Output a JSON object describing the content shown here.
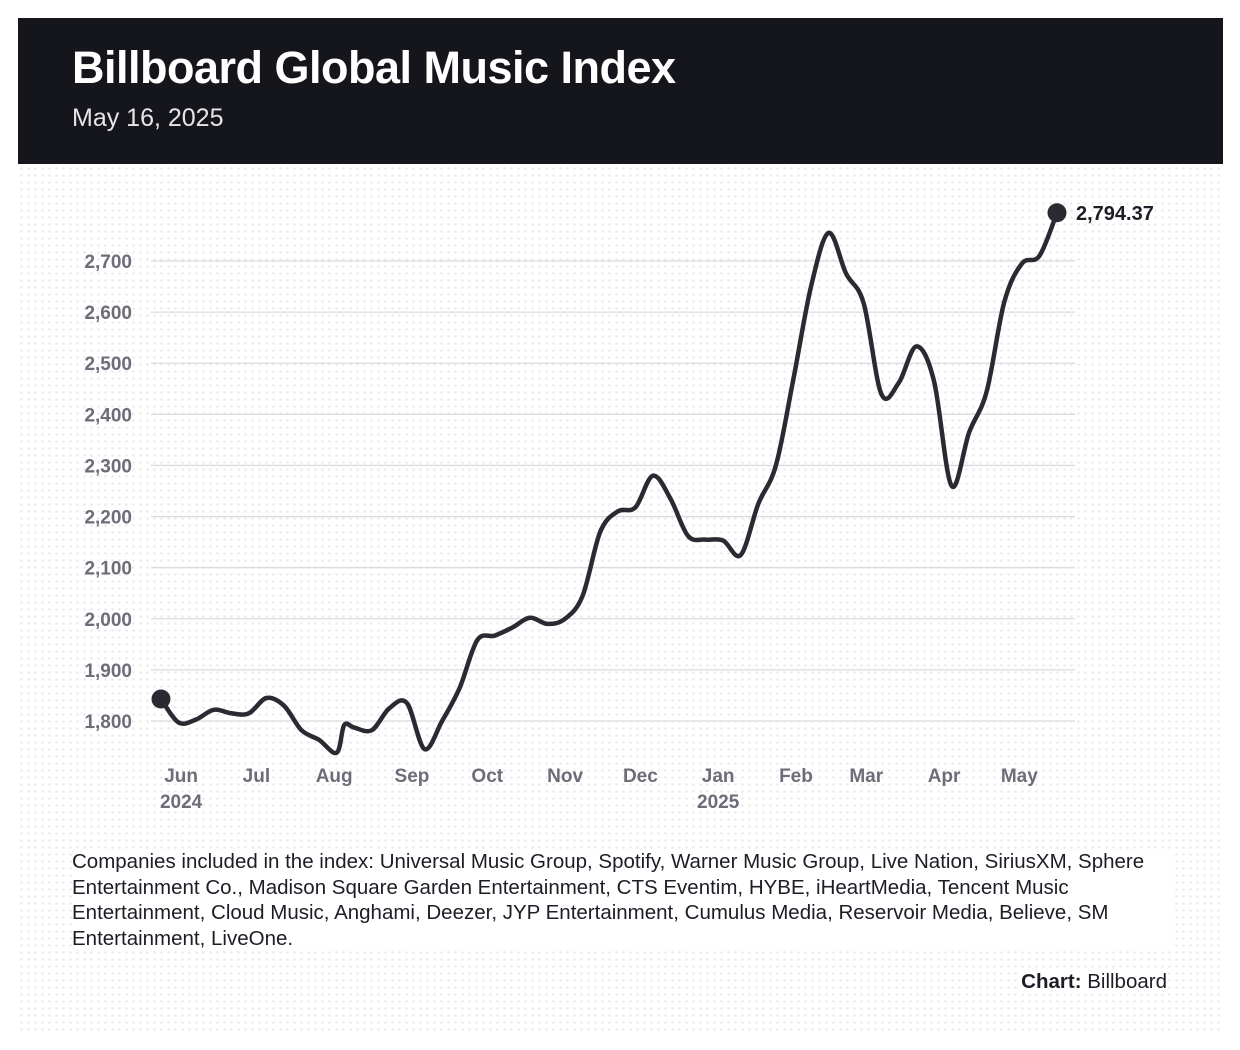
{
  "header": {
    "title": "Billboard Global Music Index",
    "date": "May 16, 2025"
  },
  "colors": {
    "header_bg": "#15151c",
    "line": "#2a2a33",
    "tick_text": "#6d6d79",
    "gridline": "#dcdce0"
  },
  "chart_data": {
    "type": "line",
    "title": "Billboard Global Music Index",
    "subtitle": "May 16, 2025",
    "xlabel": "",
    "ylabel": "",
    "ylim": [
      1730,
      2810
    ],
    "y_ticks": [
      1800,
      1900,
      2000,
      2100,
      2200,
      2300,
      2400,
      2500,
      2600,
      2700
    ],
    "y_tick_labels": [
      "1,800",
      "1,900",
      "2,000",
      "2,100",
      "2,200",
      "2,300",
      "2,400",
      "2,500",
      "2,600",
      "2,700"
    ],
    "x_ticks": [
      {
        "date": "2024-06-01",
        "label": "Jun",
        "year": "2024"
      },
      {
        "date": "2024-07-01",
        "label": "Jul",
        "year": ""
      },
      {
        "date": "2024-08-01",
        "label": "Aug",
        "year": ""
      },
      {
        "date": "2024-09-01",
        "label": "Sep",
        "year": ""
      },
      {
        "date": "2024-10-01",
        "label": "Oct",
        "year": ""
      },
      {
        "date": "2024-11-01",
        "label": "Nov",
        "year": ""
      },
      {
        "date": "2024-12-01",
        "label": "Dec",
        "year": ""
      },
      {
        "date": "2025-01-01",
        "label": "Jan",
        "year": "2025"
      },
      {
        "date": "2025-02-01",
        "label": "Feb",
        "year": ""
      },
      {
        "date": "2025-03-01",
        "label": "Mar",
        "year": ""
      },
      {
        "date": "2025-04-01",
        "label": "Apr",
        "year": ""
      },
      {
        "date": "2025-05-01",
        "label": "May",
        "year": ""
      }
    ],
    "grid": true,
    "series": [
      {
        "points": [
          {
            "x": "2024-05-24",
            "y": 1843
          },
          {
            "x": "2024-05-31",
            "y": 1797
          },
          {
            "x": "2024-06-07",
            "y": 1803
          },
          {
            "x": "2024-06-14",
            "y": 1822
          },
          {
            "x": "2024-06-21",
            "y": 1815
          },
          {
            "x": "2024-06-28",
            "y": 1815
          },
          {
            "x": "2024-07-05",
            "y": 1845
          },
          {
            "x": "2024-07-12",
            "y": 1830
          },
          {
            "x": "2024-07-19",
            "y": 1782
          },
          {
            "x": "2024-07-26",
            "y": 1763
          },
          {
            "x": "2024-08-02",
            "y": 1738
          },
          {
            "x": "2024-08-05",
            "y": 1792
          },
          {
            "x": "2024-08-09",
            "y": 1787
          },
          {
            "x": "2024-08-16",
            "y": 1782
          },
          {
            "x": "2024-08-23",
            "y": 1825
          },
          {
            "x": "2024-08-30",
            "y": 1835
          },
          {
            "x": "2024-09-06",
            "y": 1745
          },
          {
            "x": "2024-09-13",
            "y": 1800
          },
          {
            "x": "2024-09-20",
            "y": 1865
          },
          {
            "x": "2024-09-27",
            "y": 1958
          },
          {
            "x": "2024-10-04",
            "y": 1967
          },
          {
            "x": "2024-10-11",
            "y": 1983
          },
          {
            "x": "2024-10-18",
            "y": 2002
          },
          {
            "x": "2024-10-25",
            "y": 1990
          },
          {
            "x": "2024-11-01",
            "y": 2000
          },
          {
            "x": "2024-11-08",
            "y": 2045
          },
          {
            "x": "2024-11-15",
            "y": 2170
          },
          {
            "x": "2024-11-22",
            "y": 2210
          },
          {
            "x": "2024-11-29",
            "y": 2218
          },
          {
            "x": "2024-12-06",
            "y": 2280
          },
          {
            "x": "2024-12-13",
            "y": 2235
          },
          {
            "x": "2024-12-20",
            "y": 2162
          },
          {
            "x": "2024-12-27",
            "y": 2155
          },
          {
            "x": "2025-01-03",
            "y": 2153
          },
          {
            "x": "2025-01-10",
            "y": 2125
          },
          {
            "x": "2025-01-17",
            "y": 2225
          },
          {
            "x": "2025-01-24",
            "y": 2300
          },
          {
            "x": "2025-01-31",
            "y": 2470
          },
          {
            "x": "2025-02-07",
            "y": 2650
          },
          {
            "x": "2025-02-14",
            "y": 2755
          },
          {
            "x": "2025-02-21",
            "y": 2675
          },
          {
            "x": "2025-02-28",
            "y": 2617
          },
          {
            "x": "2025-03-07",
            "y": 2440
          },
          {
            "x": "2025-03-14",
            "y": 2462
          },
          {
            "x": "2025-03-21",
            "y": 2533
          },
          {
            "x": "2025-03-28",
            "y": 2465
          },
          {
            "x": "2025-04-04",
            "y": 2260
          },
          {
            "x": "2025-04-11",
            "y": 2365
          },
          {
            "x": "2025-04-18",
            "y": 2445
          },
          {
            "x": "2025-04-25",
            "y": 2620
          },
          {
            "x": "2025-05-02",
            "y": 2695
          },
          {
            "x": "2025-05-09",
            "y": 2710
          },
          {
            "x": "2025-05-16",
            "y": 2794.37
          }
        ]
      }
    ],
    "annotations": {
      "end_label": "2,794.37"
    }
  },
  "footer": {
    "note": "Companies included in the index: Universal Music Group, Spotify, Warner Music Group, Live Nation, SiriusXM, Sphere Entertainment Co., Madison Square Garden Entertainment, CTS Eventim, HYBE, iHeartMedia, Tencent Music Entertainment, Cloud Music, Anghami, Deezer, JYP Entertainment, Cumulus Media, Reservoir Media, Believe, SM Entertainment, LiveOne.",
    "credit_label": "Chart:",
    "credit_value": "Billboard"
  }
}
